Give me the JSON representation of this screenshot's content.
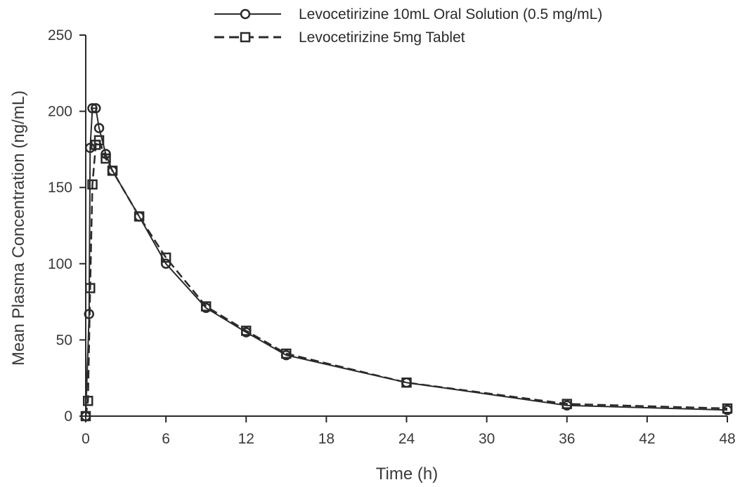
{
  "chart_data": {
    "type": "line",
    "xlabel": "Time (h)",
    "ylabel": "Mean Plasma Concentration (ng/mL)",
    "xlim": [
      0,
      48
    ],
    "ylim": [
      0,
      250
    ],
    "xticks": [
      0,
      6,
      12,
      18,
      24,
      30,
      36,
      42,
      48
    ],
    "yticks": [
      0,
      50,
      100,
      150,
      200,
      250
    ],
    "grid": false,
    "legend_position": "top",
    "series": [
      {
        "name": "Levocetirizine 10mL Oral Solution (0.5 mg/mL)",
        "marker": "circle",
        "line_style": "solid",
        "color": "#2a2a2a",
        "points": [
          [
            0,
            0
          ],
          [
            0.25,
            67
          ],
          [
            0.33,
            176
          ],
          [
            0.5,
            202
          ],
          [
            0.75,
            202
          ],
          [
            1,
            189
          ],
          [
            1.5,
            172
          ],
          [
            2,
            161
          ],
          [
            4,
            131
          ],
          [
            6,
            100
          ],
          [
            9,
            71
          ],
          [
            12,
            55
          ],
          [
            15,
            40
          ],
          [
            24,
            22
          ],
          [
            36,
            7
          ],
          [
            48,
            4
          ]
        ]
      },
      {
        "name": "Levocetirizine 5mg Tablet",
        "marker": "square",
        "line_style": "dashed",
        "color": "#2a2a2a",
        "points": [
          [
            0,
            0
          ],
          [
            0.17,
            10
          ],
          [
            0.33,
            84
          ],
          [
            0.5,
            152
          ],
          [
            0.75,
            178
          ],
          [
            1,
            181
          ],
          [
            1.5,
            169
          ],
          [
            2,
            161
          ],
          [
            4,
            131
          ],
          [
            6,
            104
          ],
          [
            9,
            72
          ],
          [
            12,
            56
          ],
          [
            15,
            41
          ],
          [
            24,
            22
          ],
          [
            36,
            8
          ],
          [
            48,
            5
          ]
        ]
      }
    ]
  }
}
